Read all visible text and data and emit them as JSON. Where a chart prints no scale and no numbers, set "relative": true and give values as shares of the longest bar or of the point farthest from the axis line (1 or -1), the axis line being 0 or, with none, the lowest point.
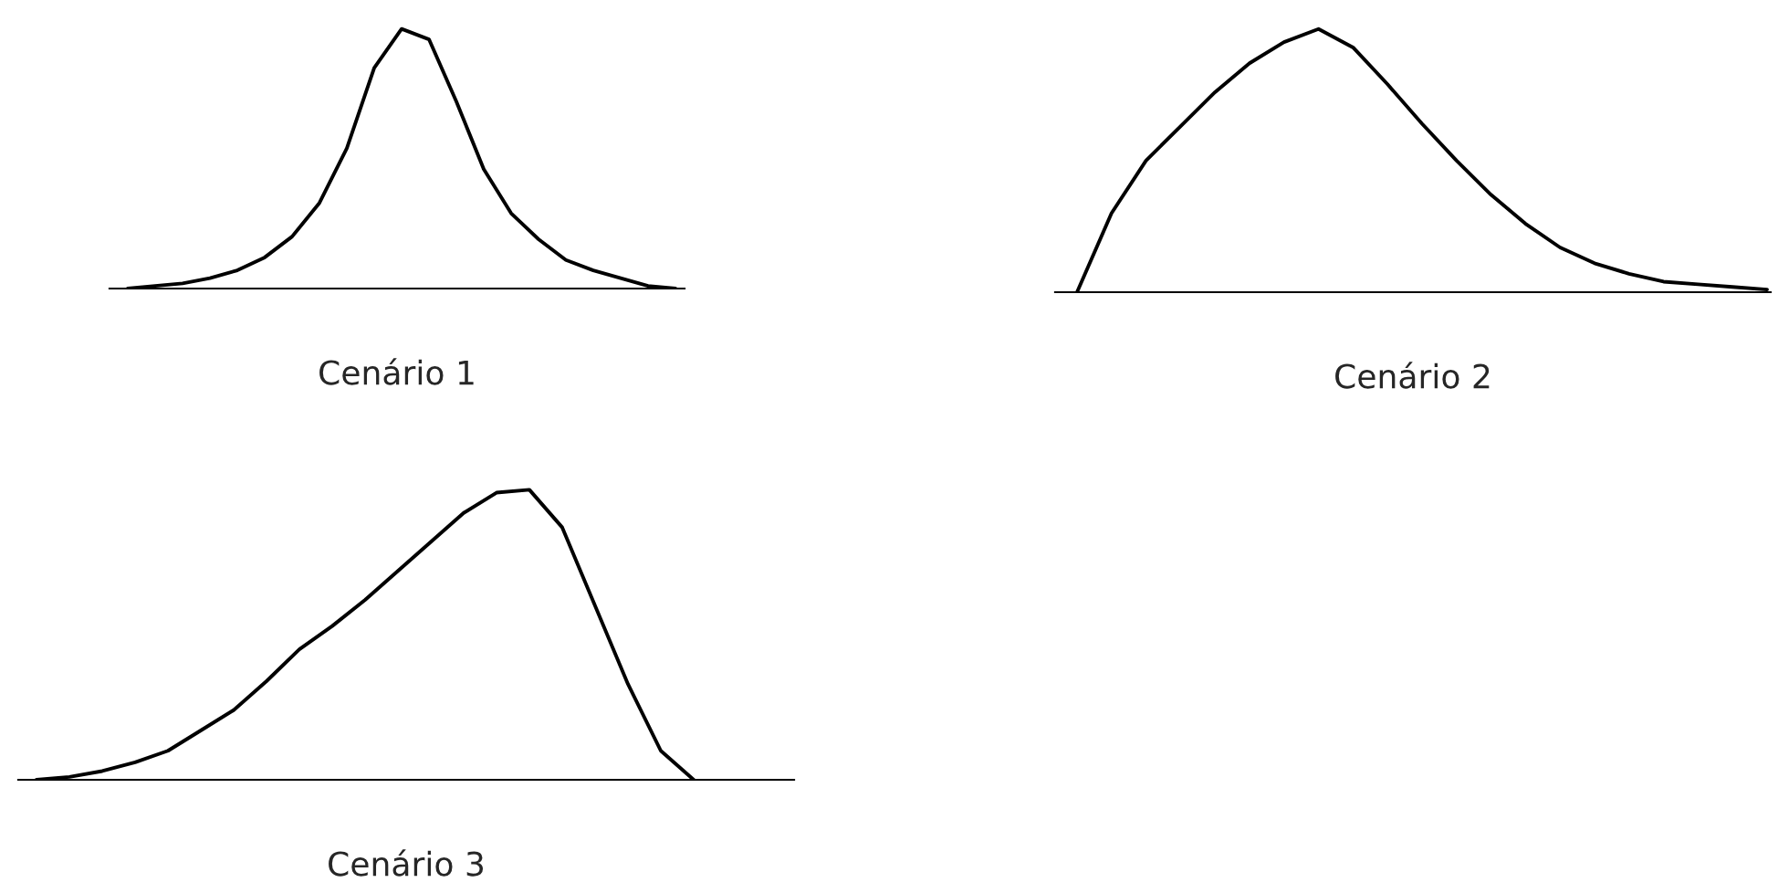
{
  "chart_data": [
    {
      "type": "line",
      "relative": true,
      "xlabel": "Cenário 1",
      "color": "#000000",
      "categories": [
        null,
        null,
        null,
        null,
        null,
        null,
        null,
        null,
        null,
        null,
        null,
        null,
        null,
        null,
        null,
        null,
        null,
        null,
        null,
        null,
        null
      ],
      "values": [
        0,
        0.01,
        0.02,
        0.04,
        0.07,
        0.12,
        0.2,
        0.33,
        0.54,
        0.85,
        1.0,
        0.96,
        0.72,
        0.46,
        0.29,
        0.19,
        0.11,
        0.07,
        0.04,
        0.01,
        0
      ]
    },
    {
      "type": "line",
      "relative": true,
      "xlabel": "Cenário 2",
      "color": "#000000",
      "categories": [
        null,
        null,
        null,
        null,
        null,
        null,
        null,
        null,
        null,
        null,
        null,
        null,
        null,
        null,
        null,
        null,
        null,
        null,
        null,
        null,
        null
      ],
      "values": [
        0,
        0.3,
        0.5,
        0.63,
        0.76,
        0.87,
        0.95,
        1.0,
        0.93,
        0.79,
        0.64,
        0.5,
        0.37,
        0.26,
        0.17,
        0.11,
        0.07,
        0.04,
        0.03,
        0.02,
        0.01
      ]
    },
    {
      "type": "line",
      "relative": true,
      "xlabel": "Cenário 3",
      "color": "#000000",
      "categories": [
        null,
        null,
        null,
        null,
        null,
        null,
        null,
        null,
        null,
        null,
        null,
        null,
        null,
        null,
        null,
        null,
        null,
        null,
        null,
        null,
        null
      ],
      "values": [
        0,
        0.01,
        0.03,
        0.06,
        0.1,
        0.17,
        0.24,
        0.34,
        0.45,
        0.53,
        0.62,
        0.72,
        0.82,
        0.92,
        0.99,
        1.0,
        0.87,
        0.6,
        0.33,
        0.1,
        0
      ]
    }
  ]
}
